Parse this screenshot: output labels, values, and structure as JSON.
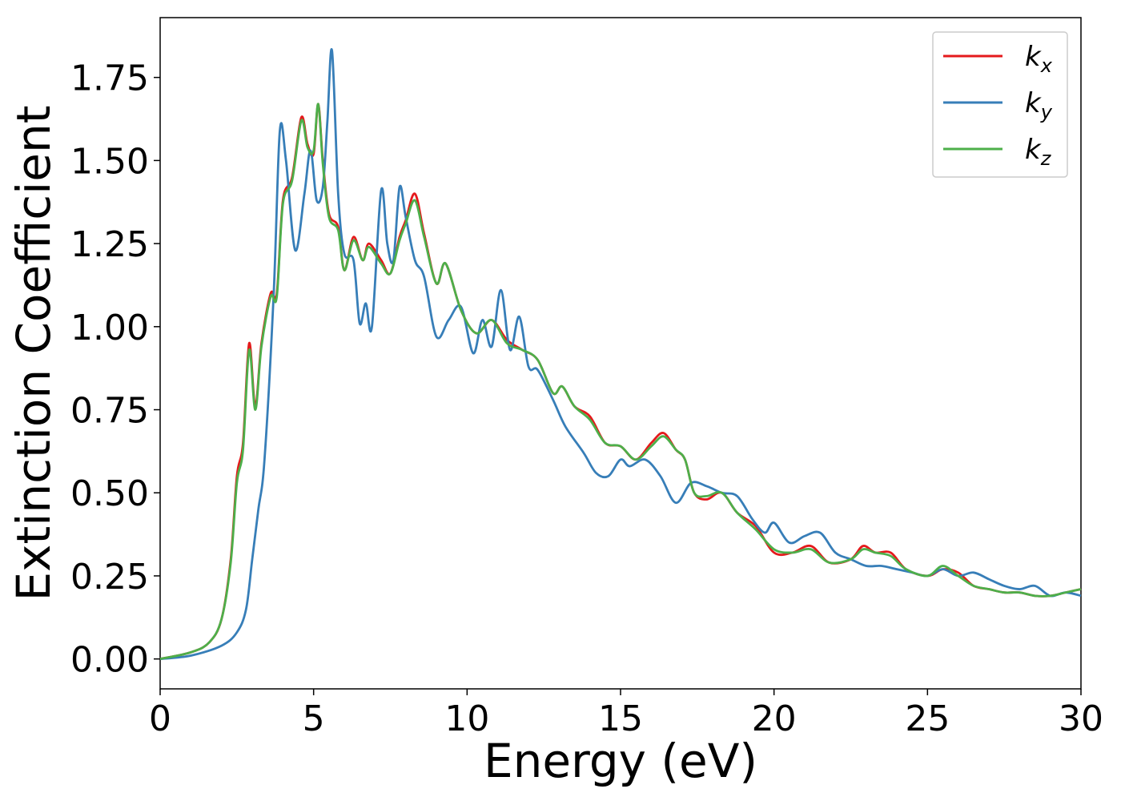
{
  "chart_data": {
    "type": "line",
    "xlabel": "Energy (eV)",
    "ylabel": "Extinction Coefficient",
    "xlim": [
      0,
      30
    ],
    "ylim": [
      -0.09,
      1.93
    ],
    "xticks": [
      0,
      5,
      10,
      15,
      20,
      25,
      30
    ],
    "yticks": [
      0.0,
      0.25,
      0.5,
      0.75,
      1.0,
      1.25,
      1.5,
      1.75
    ],
    "xtick_labels": [
      "0",
      "5",
      "10",
      "15",
      "20",
      "25",
      "30"
    ],
    "ytick_labels": [
      "0.00",
      "0.25",
      "0.50",
      "0.75",
      "1.00",
      "1.25",
      "1.50",
      "1.75"
    ],
    "grid": false,
    "legend_position": "top-right",
    "series": [
      {
        "name": "k_x",
        "legend_base": "k",
        "legend_sub": "x",
        "color": "#e41a1c",
        "x": [
          0,
          1,
          1.6,
          2.0,
          2.3,
          2.5,
          2.7,
          2.9,
          3.1,
          3.3,
          3.6,
          3.8,
          4.0,
          4.3,
          4.6,
          4.8,
          5.0,
          5.15,
          5.3,
          5.5,
          5.8,
          6.0,
          6.3,
          6.6,
          6.8,
          7.2,
          7.5,
          7.8,
          8.0,
          8.3,
          8.6,
          9.0,
          9.3,
          9.8,
          10.3,
          10.8,
          11.3,
          11.8,
          12.3,
          12.8,
          13.1,
          13.5,
          14.0,
          14.5,
          15.0,
          15.5,
          16.0,
          16.4,
          16.8,
          17.1,
          17.4,
          17.8,
          18.3,
          18.8,
          19.4,
          20.0,
          20.6,
          21.2,
          21.8,
          22.5,
          22.9,
          23.3,
          23.8,
          24.3,
          25.0,
          25.5,
          26.0,
          26.5,
          27.0,
          27.5,
          28.0,
          28.5,
          29.0,
          29.5,
          30.0
        ],
        "y": [
          0.0,
          0.02,
          0.05,
          0.12,
          0.3,
          0.55,
          0.65,
          0.95,
          0.76,
          0.95,
          1.1,
          1.1,
          1.38,
          1.45,
          1.63,
          1.55,
          1.52,
          1.67,
          1.5,
          1.34,
          1.3,
          1.17,
          1.27,
          1.2,
          1.25,
          1.2,
          1.16,
          1.27,
          1.32,
          1.4,
          1.28,
          1.13,
          1.19,
          1.05,
          0.98,
          1.02,
          0.96,
          0.93,
          0.9,
          0.8,
          0.82,
          0.76,
          0.73,
          0.65,
          0.64,
          0.6,
          0.65,
          0.68,
          0.63,
          0.6,
          0.5,
          0.48,
          0.5,
          0.44,
          0.4,
          0.32,
          0.32,
          0.34,
          0.29,
          0.3,
          0.34,
          0.32,
          0.32,
          0.27,
          0.25,
          0.27,
          0.26,
          0.22,
          0.21,
          0.2,
          0.2,
          0.19,
          0.19,
          0.2,
          0.21
        ]
      },
      {
        "name": "k_y",
        "legend_base": "k",
        "legend_sub": "y",
        "color": "#377eb8",
        "x": [
          0,
          1,
          2.0,
          2.5,
          2.8,
          3.0,
          3.2,
          3.4,
          3.7,
          3.9,
          4.1,
          4.4,
          4.7,
          4.9,
          5.1,
          5.3,
          5.45,
          5.6,
          5.8,
          6.0,
          6.3,
          6.5,
          6.7,
          6.9,
          7.2,
          7.4,
          7.6,
          7.8,
          8.0,
          8.3,
          8.6,
          9.0,
          9.4,
          9.8,
          10.2,
          10.5,
          10.8,
          11.1,
          11.4,
          11.7,
          12.0,
          12.3,
          12.8,
          13.2,
          13.8,
          14.2,
          14.6,
          15.0,
          15.3,
          15.8,
          16.3,
          16.8,
          17.3,
          17.8,
          18.3,
          18.8,
          19.3,
          19.7,
          20.0,
          20.5,
          21.0,
          21.5,
          22.0,
          22.5,
          23.0,
          23.5,
          24.0,
          24.5,
          25.0,
          25.5,
          26.0,
          26.5,
          27.0,
          27.5,
          28.0,
          28.5,
          29.0,
          29.5,
          30.0
        ],
        "y": [
          0.0,
          0.01,
          0.04,
          0.08,
          0.15,
          0.3,
          0.45,
          0.6,
          1.1,
          1.59,
          1.5,
          1.23,
          1.4,
          1.53,
          1.38,
          1.42,
          1.62,
          1.83,
          1.4,
          1.22,
          1.2,
          1.01,
          1.07,
          1.0,
          1.41,
          1.25,
          1.2,
          1.42,
          1.33,
          1.2,
          1.15,
          0.97,
          1.02,
          1.06,
          0.92,
          1.02,
          0.94,
          1.11,
          0.93,
          1.03,
          0.88,
          0.87,
          0.78,
          0.7,
          0.62,
          0.56,
          0.55,
          0.6,
          0.58,
          0.6,
          0.55,
          0.47,
          0.53,
          0.52,
          0.5,
          0.49,
          0.42,
          0.38,
          0.41,
          0.35,
          0.37,
          0.38,
          0.32,
          0.3,
          0.28,
          0.28,
          0.27,
          0.26,
          0.25,
          0.27,
          0.25,
          0.26,
          0.24,
          0.22,
          0.21,
          0.22,
          0.19,
          0.2,
          0.19
        ]
      },
      {
        "name": "k_z",
        "legend_base": "k",
        "legend_sub": "z",
        "color": "#4daf4a",
        "x": [
          0,
          1,
          1.6,
          2.0,
          2.3,
          2.5,
          2.7,
          2.9,
          3.1,
          3.3,
          3.6,
          3.8,
          4.0,
          4.3,
          4.6,
          4.8,
          5.0,
          5.15,
          5.3,
          5.5,
          5.8,
          6.0,
          6.3,
          6.6,
          6.8,
          7.2,
          7.5,
          7.8,
          8.0,
          8.3,
          8.6,
          9.0,
          9.3,
          9.8,
          10.3,
          10.8,
          11.3,
          11.8,
          12.3,
          12.8,
          13.1,
          13.5,
          14.0,
          14.5,
          15.0,
          15.5,
          16.0,
          16.4,
          16.8,
          17.1,
          17.4,
          17.8,
          18.3,
          18.8,
          19.4,
          20.0,
          20.6,
          21.2,
          21.8,
          22.5,
          22.9,
          23.3,
          23.8,
          24.3,
          25.0,
          25.5,
          26.0,
          26.5,
          27.0,
          27.5,
          28.0,
          28.5,
          29.0,
          29.5,
          30.0
        ],
        "y": [
          0.0,
          0.02,
          0.05,
          0.12,
          0.29,
          0.53,
          0.63,
          0.93,
          0.75,
          0.94,
          1.09,
          1.09,
          1.37,
          1.44,
          1.62,
          1.54,
          1.53,
          1.67,
          1.49,
          1.33,
          1.29,
          1.17,
          1.26,
          1.2,
          1.24,
          1.19,
          1.16,
          1.26,
          1.31,
          1.38,
          1.27,
          1.13,
          1.19,
          1.05,
          0.98,
          1.02,
          0.95,
          0.93,
          0.9,
          0.8,
          0.82,
          0.76,
          0.72,
          0.65,
          0.64,
          0.6,
          0.64,
          0.67,
          0.63,
          0.6,
          0.5,
          0.49,
          0.5,
          0.44,
          0.39,
          0.33,
          0.32,
          0.33,
          0.29,
          0.3,
          0.33,
          0.32,
          0.31,
          0.27,
          0.25,
          0.28,
          0.25,
          0.22,
          0.21,
          0.2,
          0.2,
          0.19,
          0.19,
          0.2,
          0.21
        ]
      }
    ]
  }
}
